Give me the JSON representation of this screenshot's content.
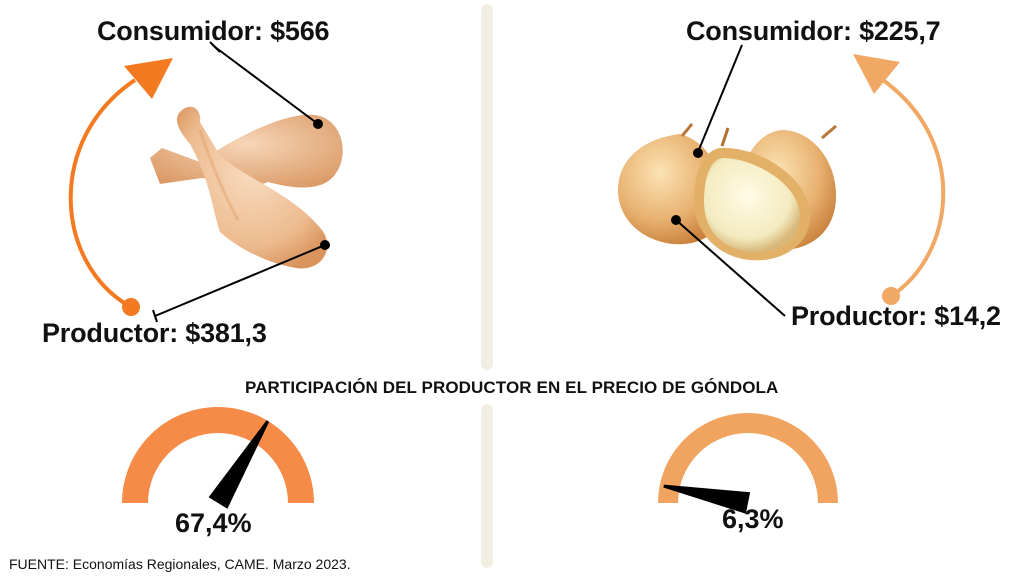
{
  "subtitle": "PARTICIPACIÓN DEL PRODUCTOR EN EL PRECIO DE GÓNDOLA",
  "source": "FUENTE: Economías Regionales, CAME. Marzo 2023.",
  "colors": {
    "chicken_arrow": "#f47a22",
    "onion_arrow": "#f2a865",
    "chicken_gauge": "#f58b47",
    "onion_gauge": "#f0a460",
    "divider": "#f2eee2",
    "needle": "#000000"
  },
  "chart_data": [
    {
      "type": "gauge",
      "product_icon": "chicken-legs-icon",
      "consumer_label": "Consumidor: $566",
      "producer_label": "Productor: $381,3",
      "consumer_price": 566,
      "producer_price": 381.3,
      "share_percent": 67.4,
      "share_label": "67,4%",
      "range": [
        0,
        100
      ]
    },
    {
      "type": "gauge",
      "product_icon": "onions-icon",
      "consumer_label": "Consumidor: $225,7",
      "producer_label": "Productor: $14,2",
      "consumer_price": 225.7,
      "producer_price": 14.2,
      "share_percent": 6.3,
      "share_label": "6,3%",
      "range": [
        0,
        100
      ]
    }
  ]
}
